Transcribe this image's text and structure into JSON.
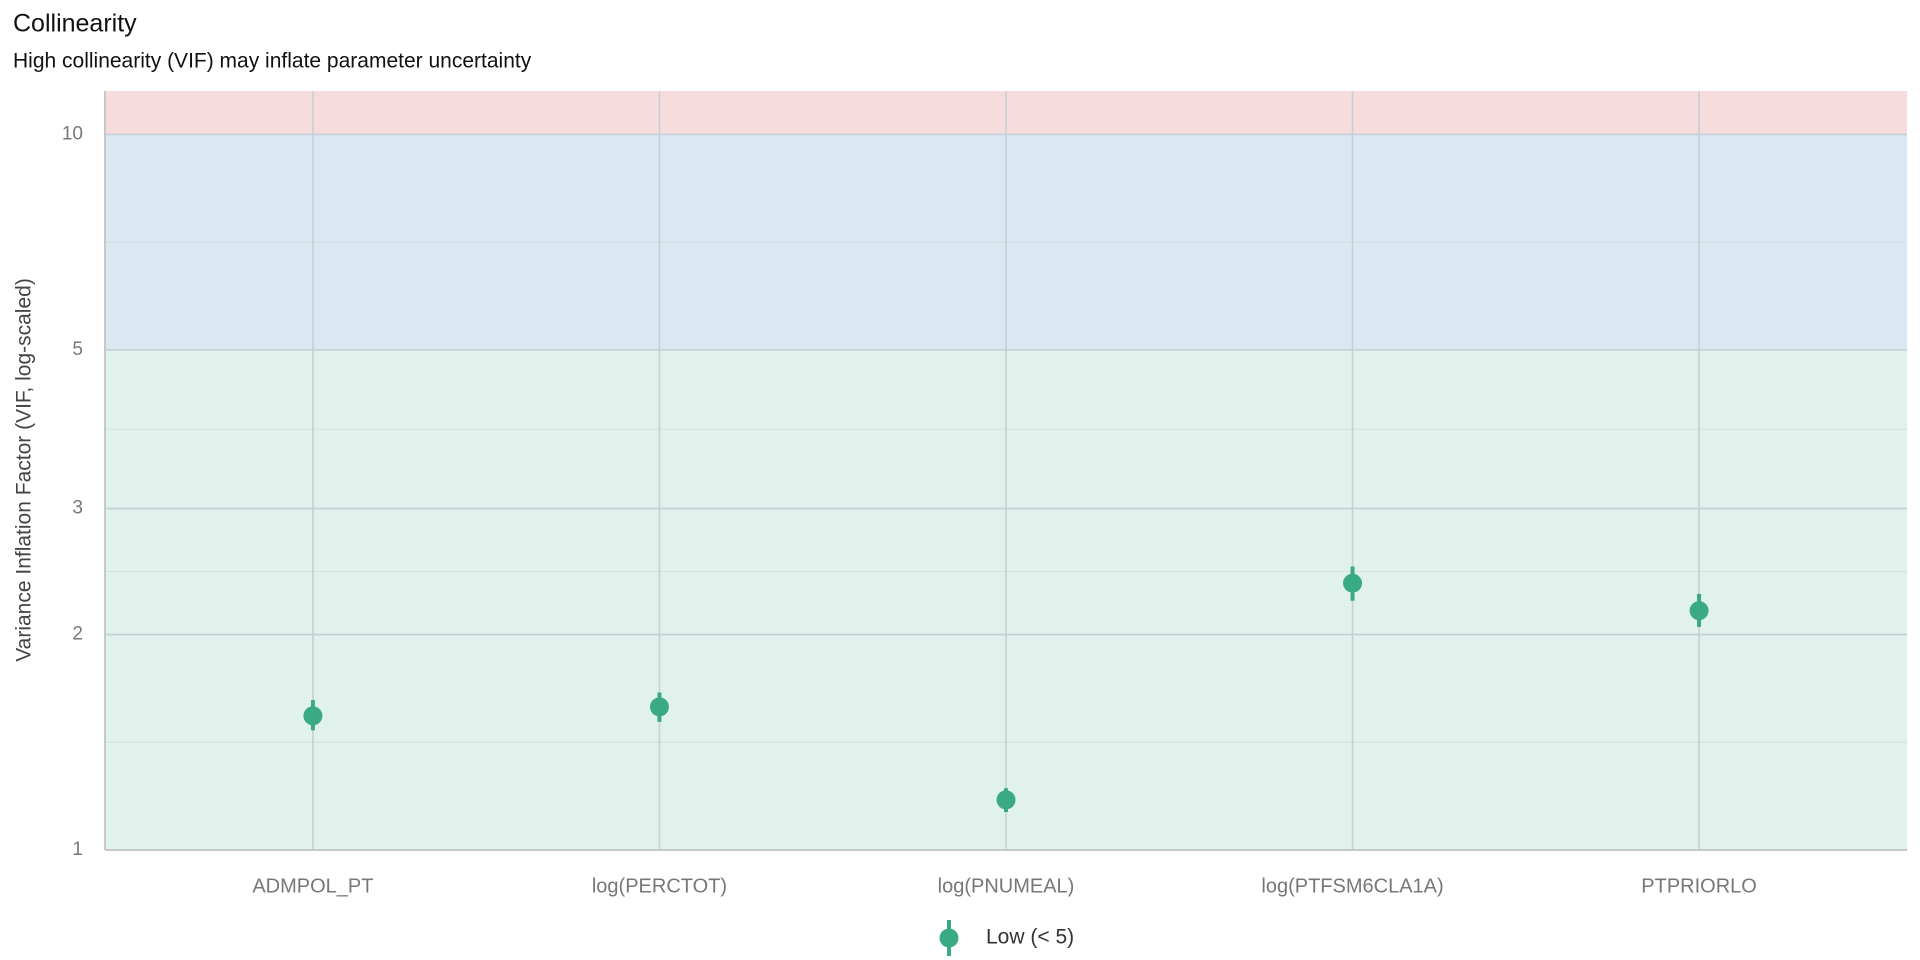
{
  "chart_data": {
    "type": "pointrange",
    "title": "Collinearity",
    "subtitle": "High collinearity (VIF) may inflate parameter uncertainty",
    "y_label": "Variance Inflation Factor (VIF, log-scaled)",
    "log_y": true,
    "grid": true,
    "legend": "bottom",
    "categories": [
      "ADMPOL_PT",
      "log(PERCTOT)",
      "log(PNUMEAL)",
      "log(PTFSM6CLA1A)",
      "PTPRIORLO"
    ],
    "series": [
      {
        "name": "Low (< 5)",
        "color": "#3aaa85",
        "values": [
          1.54,
          1.585,
          1.175,
          2.36,
          2.16
        ],
        "ci_low": [
          1.47,
          1.51,
          1.13,
          2.23,
          2.05
        ],
        "ci_high": [
          1.62,
          1.66,
          1.22,
          2.49,
          2.28
        ]
      }
    ],
    "bands": [
      {
        "from": 1,
        "to": 5,
        "color": "#e1f1eb"
      },
      {
        "from": 5,
        "to": 10,
        "color": "#dce8f1"
      },
      {
        "from": 10,
        "to": 11.5,
        "color": "#f7dcde"
      }
    ],
    "ylim": [
      1,
      11.5
    ],
    "yticks": [
      1,
      2,
      3,
      5,
      10
    ]
  }
}
